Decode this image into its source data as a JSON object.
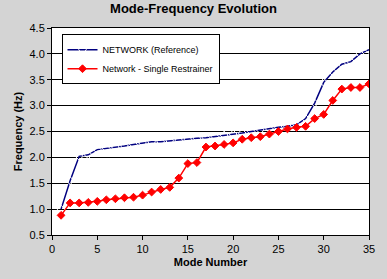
{
  "chart_data": {
    "type": "line",
    "title": "Mode-Frequency Evolution",
    "x_label": "Mode Number",
    "y_label": "Frequency (Hz)",
    "x": [
      1,
      2,
      3,
      4,
      5,
      6,
      7,
      8,
      9,
      10,
      11,
      12,
      13,
      14,
      15,
      16,
      17,
      18,
      19,
      20,
      21,
      22,
      23,
      24,
      25,
      26,
      27,
      28,
      29,
      30,
      31,
      32,
      33,
      34,
      35
    ],
    "series": [
      {
        "name": "NETWORK (Reference)",
        "color": "#000080",
        "marker": "diamond-open",
        "values": [
          1.0,
          1.55,
          2.02,
          2.05,
          2.15,
          2.17,
          2.2,
          2.22,
          2.25,
          2.28,
          2.3,
          2.3,
          2.32,
          2.33,
          2.35,
          2.37,
          2.38,
          2.4,
          2.43,
          2.45,
          2.47,
          2.5,
          2.53,
          2.55,
          2.58,
          2.6,
          2.63,
          2.75,
          3.05,
          3.45,
          3.65,
          3.8,
          3.85,
          4.0,
          4.08
        ]
      },
      {
        "name": "Network - Single Restrainer",
        "color": "#ff0000",
        "marker": "diamond",
        "values": [
          0.88,
          1.12,
          1.12,
          1.13,
          1.15,
          1.18,
          1.2,
          1.22,
          1.23,
          1.27,
          1.33,
          1.38,
          1.42,
          1.6,
          1.88,
          1.9,
          2.2,
          2.22,
          2.25,
          2.28,
          2.35,
          2.38,
          2.4,
          2.45,
          2.5,
          2.55,
          2.58,
          2.6,
          2.75,
          2.83,
          3.1,
          3.32,
          3.35,
          3.35,
          3.42
        ]
      }
    ],
    "xlim": [
      0,
      35
    ],
    "xticks": [
      0,
      5,
      10,
      15,
      20,
      25,
      30,
      35
    ],
    "ylim": [
      0.5,
      4.5
    ],
    "yticks": [
      0.5,
      {
        "value": 1,
        "label": "1.0"
      },
      1.5,
      {
        "value": 2,
        "label": "2.0"
      },
      2.5,
      {
        "value": 3,
        "label": "3.0"
      },
      3.5,
      {
        "value": 4,
        "label": "4.0"
      },
      4.5
    ],
    "grid": true,
    "legend": "upper left"
  }
}
